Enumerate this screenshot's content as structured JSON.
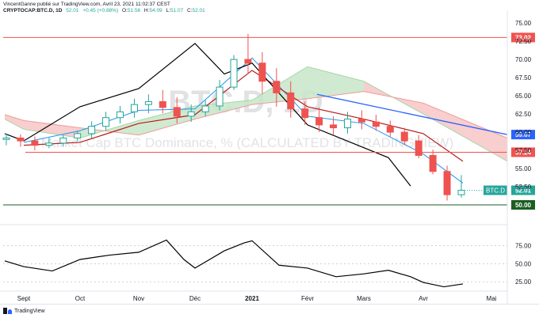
{
  "header": {
    "publisher": "VincentGanne publié sur TradingView.com, Avril 23, 2021 11:02:37 CEST",
    "symbol": "CRYPTOCAP:BTC.D, 1D",
    "value": "52.01",
    "change": "+0.45 (+0.88%)",
    "o_label": "O:",
    "o_val": "51.56",
    "h_label": "H:",
    "h_val": "54.09",
    "l_label": "L:",
    "l_val": "51.07",
    "c_label": "C:",
    "c_val": "52.01"
  },
  "watermark": {
    "symbol": "BTC.D, 1D",
    "description": "Market Cap BTC Dominance, % (CALCULATED BY TRADINGVIEW)"
  },
  "colors": {
    "up": "#26a69a",
    "down": "#ef5350",
    "cloud_red": "#f7c5c5",
    "cloud_green": "#c8e6c9",
    "kijun": "#b71c1c",
    "tenkan": "#2196f3",
    "chikou": "#000000",
    "senkou_b": "#ef9a9a",
    "senkou_a": "#a5d6a7",
    "trendline": "#2962ff",
    "hline_red": "#ef5350",
    "hline_green": "#1b5e20"
  },
  "price_levels": [
    {
      "value": 73.02,
      "label": "73.02",
      "color": "#ef5350"
    },
    {
      "value": 57.24,
      "label": "57.24",
      "color": "#ef5350"
    },
    {
      "value": 50.0,
      "label": "50.00",
      "color": "#1b5e20"
    }
  ],
  "trendline_label": "59.67",
  "last_price_tag": {
    "symbol": "BTC.D",
    "value": "52.01"
  },
  "footer": {
    "brand": "TradingView"
  },
  "chart_data": [
    {
      "type": "candlestick",
      "title": "CRYPTOCAP:BTC.D, 1D",
      "ylim": [
        47.5,
        76
      ],
      "y_ticks": [
        "75.00",
        "72.50",
        "70.00",
        "67.50",
        "65.00",
        "62.50",
        "60.00",
        "57.50",
        "55.00",
        "52.50"
      ],
      "x_ticks": [
        "Sept",
        "Oct",
        "Nov",
        "Déc",
        "2021",
        "Févr",
        "Mars",
        "Avr",
        "Mai"
      ],
      "ohlc_weekly_approx": [
        {
          "period": "Aug-W4",
          "o": 59.0,
          "h": 59.8,
          "l": 58.2,
          "c": 59.2
        },
        {
          "period": "Sep-W1",
          "o": 59.2,
          "h": 59.7,
          "l": 58.0,
          "c": 58.8
        },
        {
          "period": "Sep-W2",
          "o": 58.8,
          "h": 59.4,
          "l": 57.5,
          "c": 58.2
        },
        {
          "period": "Sep-W3",
          "o": 58.2,
          "h": 59.2,
          "l": 57.8,
          "c": 58.5
        },
        {
          "period": "Sep-W4",
          "o": 58.5,
          "h": 59.6,
          "l": 58.0,
          "c": 59.2
        },
        {
          "period": "Oct-W1",
          "o": 59.2,
          "h": 60.2,
          "l": 58.8,
          "c": 59.8
        },
        {
          "period": "Oct-W2",
          "o": 59.8,
          "h": 61.5,
          "l": 59.2,
          "c": 60.8
        },
        {
          "period": "Oct-W3",
          "o": 60.8,
          "h": 62.8,
          "l": 60.2,
          "c": 62.0
        },
        {
          "period": "Oct-W4",
          "o": 62.0,
          "h": 63.6,
          "l": 61.2,
          "c": 62.8
        },
        {
          "period": "Nov-W1",
          "o": 62.8,
          "h": 64.6,
          "l": 62.0,
          "c": 63.8
        },
        {
          "period": "Nov-W2",
          "o": 63.8,
          "h": 65.2,
          "l": 62.6,
          "c": 64.2
        },
        {
          "period": "Nov-W3",
          "o": 64.2,
          "h": 65.8,
          "l": 62.6,
          "c": 63.4
        },
        {
          "period": "Nov-W4",
          "o": 63.4,
          "h": 64.8,
          "l": 61.2,
          "c": 62.2
        },
        {
          "period": "Dec-W1",
          "o": 62.2,
          "h": 63.8,
          "l": 61.4,
          "c": 62.8
        },
        {
          "period": "Dec-W2",
          "o": 62.8,
          "h": 64.4,
          "l": 62.2,
          "c": 63.6
        },
        {
          "period": "Dec-W3",
          "o": 63.6,
          "h": 67.2,
          "l": 63.0,
          "c": 66.2
        },
        {
          "period": "Dec-W4",
          "o": 66.2,
          "h": 70.6,
          "l": 65.8,
          "c": 70.0
        },
        {
          "period": "Jan-W1",
          "o": 70.0,
          "h": 73.5,
          "l": 68.0,
          "c": 69.5
        },
        {
          "period": "Jan-W2",
          "o": 69.5,
          "h": 71.0,
          "l": 65.2,
          "c": 67.0
        },
        {
          "period": "Jan-W3",
          "o": 67.0,
          "h": 68.8,
          "l": 63.5,
          "c": 65.4
        },
        {
          "period": "Jan-W4",
          "o": 65.4,
          "h": 67.0,
          "l": 62.0,
          "c": 63.2
        },
        {
          "period": "Feb-W1",
          "o": 63.2,
          "h": 64.2,
          "l": 61.0,
          "c": 62.0
        },
        {
          "period": "Feb-W2",
          "o": 62.0,
          "h": 63.4,
          "l": 60.0,
          "c": 61.0
        },
        {
          "period": "Feb-W3",
          "o": 61.0,
          "h": 62.2,
          "l": 59.6,
          "c": 60.6
        },
        {
          "period": "Feb-W4",
          "o": 60.6,
          "h": 62.8,
          "l": 59.8,
          "c": 61.8
        },
        {
          "period": "Mar-W1",
          "o": 61.8,
          "h": 63.0,
          "l": 60.4,
          "c": 61.4
        },
        {
          "period": "Mar-W2",
          "o": 61.4,
          "h": 62.4,
          "l": 60.2,
          "c": 60.8
        },
        {
          "period": "Mar-W3",
          "o": 60.8,
          "h": 61.6,
          "l": 59.4,
          "c": 60.0
        },
        {
          "period": "Mar-W4",
          "o": 60.0,
          "h": 60.6,
          "l": 58.2,
          "c": 58.8
        },
        {
          "period": "Apr-W1",
          "o": 58.8,
          "h": 59.6,
          "l": 56.4,
          "c": 56.8
        },
        {
          "period": "Apr-W2",
          "o": 56.8,
          "h": 57.6,
          "l": 54.2,
          "c": 54.6
        },
        {
          "period": "Apr-W3",
          "o": 54.6,
          "h": 55.4,
          "l": 50.6,
          "c": 51.4
        },
        {
          "period": "Apr-W4",
          "o": 51.4,
          "h": 54.1,
          "l": 51.0,
          "c": 52.0
        }
      ],
      "kijun_sen": [
        {
          "x": "Sept",
          "y": 58.2
        },
        {
          "x": "Oct",
          "y": 58.6
        },
        {
          "x": "Nov",
          "y": 61.2
        },
        {
          "x": "Déc",
          "y": 62.4
        },
        {
          "x": "2021",
          "y": 68.5
        },
        {
          "x": "Févr",
          "y": 63.5
        },
        {
          "x": "Mars",
          "y": 61.8
        },
        {
          "x": "Avr",
          "y": 59.8
        },
        {
          "x": "Avr-end",
          "y": 56.0
        }
      ],
      "tenkan_sen": [
        {
          "x": "Sept",
          "y": 58.6
        },
        {
          "x": "Oct",
          "y": 60.2
        },
        {
          "x": "Nov",
          "y": 63.0
        },
        {
          "x": "Déc",
          "y": 63.2
        },
        {
          "x": "2021",
          "y": 70.2
        },
        {
          "x": "Févr",
          "y": 62.2
        },
        {
          "x": "Mars",
          "y": 61.2
        },
        {
          "x": "Avr",
          "y": 57.0
        },
        {
          "x": "Avr-end",
          "y": 53.0
        }
      ],
      "chikou_span": [
        {
          "x": "Aug-end",
          "y": 59.8
        },
        {
          "x": "Sept",
          "y": 58.8
        },
        {
          "x": "Oct",
          "y": 63.5
        },
        {
          "x": "Nov",
          "y": 66.0
        },
        {
          "x": "Déc",
          "y": 72.2
        },
        {
          "x": "Déc-mid",
          "y": 68.0
        },
        {
          "x": "2021",
          "y": 69.5
        },
        {
          "x": "Févr",
          "y": 61.0
        },
        {
          "x": "Mars-mid",
          "y": 56.5
        },
        {
          "x": "Mars-end",
          "y": 52.6
        }
      ],
      "kumo_cloud": {
        "senkou_a": [
          {
            "x": "Aug-end",
            "y": 61.8
          },
          {
            "x": "Sept",
            "y": 60.4
          },
          {
            "x": "Oct",
            "y": 59.2
          },
          {
            "x": "Nov",
            "y": 61.6
          },
          {
            "x": "Déc",
            "y": 63.6
          },
          {
            "x": "2021",
            "y": 64.4
          },
          {
            "x": "Févr",
            "y": 69.0
          },
          {
            "x": "Mars",
            "y": 67.0
          },
          {
            "x": "Avr",
            "y": 62.5
          },
          {
            "x": "Mai",
            "y": 56.0
          }
        ],
        "senkou_b": [
          {
            "x": "Aug-end",
            "y": 62.4
          },
          {
            "x": "Sept",
            "y": 61.6
          },
          {
            "x": "Oct",
            "y": 60.6
          },
          {
            "x": "Nov",
            "y": 59.6
          },
          {
            "x": "Déc",
            "y": 61.8
          },
          {
            "x": "2021",
            "y": 63.8
          },
          {
            "x": "Févr",
            "y": 64.6
          },
          {
            "x": "Mars",
            "y": 65.6
          },
          {
            "x": "Avr",
            "y": 64.0
          },
          {
            "x": "Mai",
            "y": 59.2
          }
        ]
      }
    },
    {
      "type": "line",
      "title": "",
      "ylim": [
        12,
        100
      ],
      "y_ticks": [
        "75.00",
        "50.00",
        "25.00"
      ],
      "series": [
        {
          "values": [
            {
              "x": "Aug-end",
              "y": 54
            },
            {
              "x": "Sept",
              "y": 46
            },
            {
              "x": "Sept-mid",
              "y": 40
            },
            {
              "x": "Oct",
              "y": 56
            },
            {
              "x": "Oct-mid",
              "y": 62
            },
            {
              "x": "Nov",
              "y": 66
            },
            {
              "x": "Nov-mid",
              "y": 83
            },
            {
              "x": "Nov-end",
              "y": 56
            },
            {
              "x": "Déc",
              "y": 44
            },
            {
              "x": "Déc-mid",
              "y": 68
            },
            {
              "x": "Déc-end",
              "y": 79
            },
            {
              "x": "2021",
              "y": 82
            },
            {
              "x": "Jan-mid",
              "y": 48
            },
            {
              "x": "Févr",
              "y": 44
            },
            {
              "x": "Févr-mid",
              "y": 32
            },
            {
              "x": "Mars",
              "y": 36
            },
            {
              "x": "Mars-mid",
              "y": 41
            },
            {
              "x": "Mars-end",
              "y": 32
            },
            {
              "x": "Avr",
              "y": 24
            },
            {
              "x": "Avr-mid",
              "y": 18
            },
            {
              "x": "Avr-end",
              "y": 22
            }
          ]
        }
      ]
    }
  ]
}
